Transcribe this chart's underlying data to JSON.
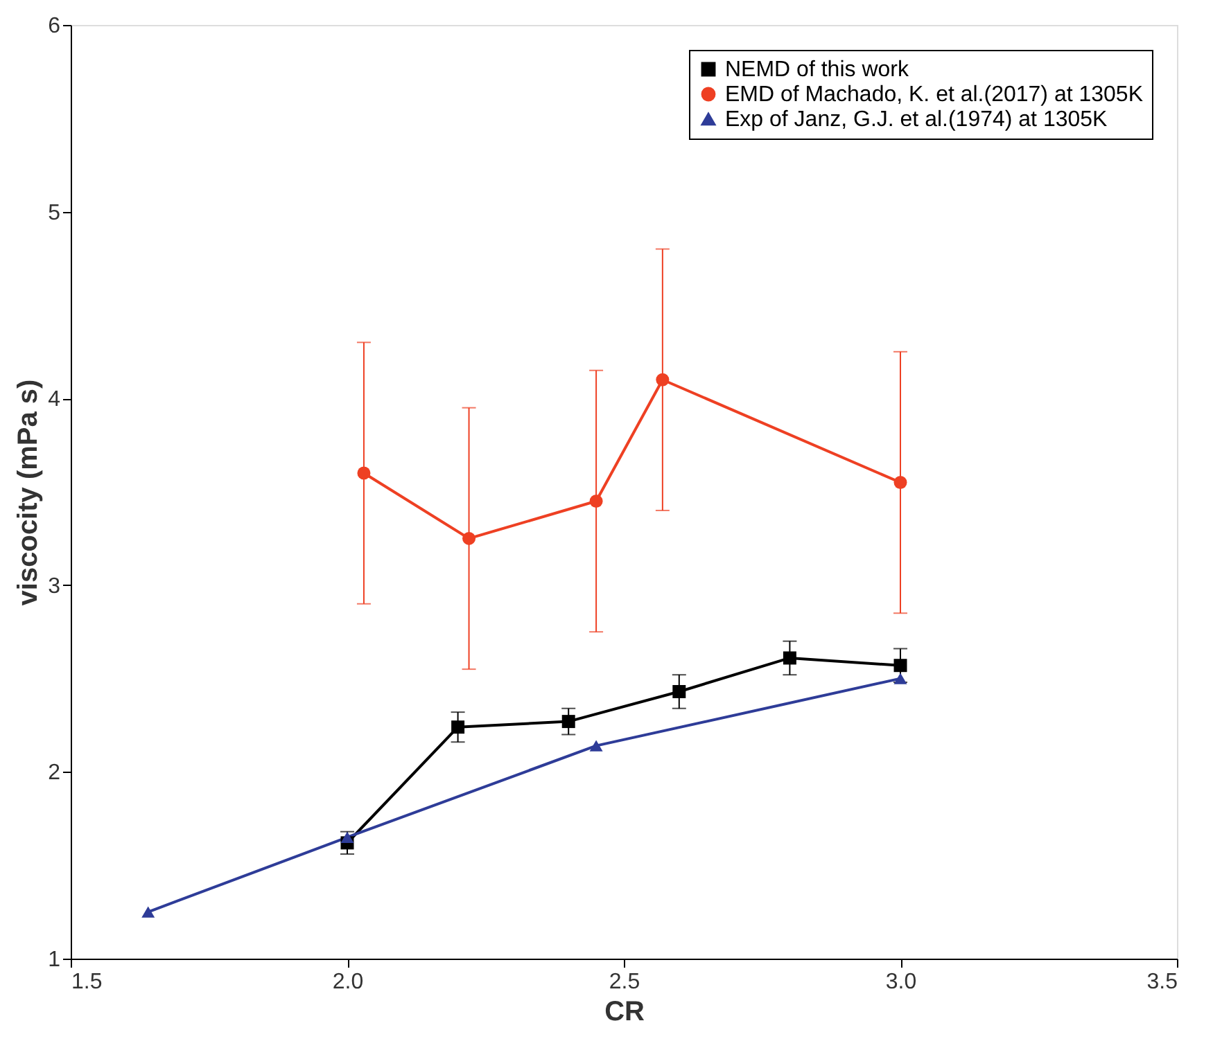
{
  "chart_data": {
    "type": "line",
    "xlabel": "CR",
    "ylabel": "viscocity (mPa s)",
    "xlim": [
      1.5,
      3.5
    ],
    "xticks": [
      1.5,
      {
        "value": 2,
        "label": "2.0"
      },
      2.5,
      {
        "value": 3,
        "label": "3.0"
      },
      3.5
    ],
    "ylim": [
      1,
      6
    ],
    "yticks": [
      1,
      2,
      3,
      4,
      5,
      6
    ],
    "grid": false,
    "legend": "top right",
    "line_style": "solid",
    "series": [
      {
        "name": "NEMD of this work",
        "color": "#000000",
        "marker": "square",
        "x": [
          2.0,
          2.2,
          2.4,
          2.6,
          2.8,
          3.0
        ],
        "values": [
          1.62,
          2.24,
          2.27,
          2.43,
          2.61,
          2.57
        ],
        "errors": [
          0.06,
          0.08,
          0.07,
          0.09,
          0.09,
          0.09
        ]
      },
      {
        "name": "EMD of Machado, K. et al.(2017) at 1305K",
        "color": "#ee4023",
        "marker": "circle",
        "x": [
          2.03,
          2.22,
          2.45,
          2.57,
          3.0
        ],
        "values": [
          3.6,
          3.25,
          3.45,
          4.1,
          3.55
        ],
        "errors": [
          0.7,
          0.7,
          0.7,
          0.7,
          0.7
        ]
      },
      {
        "name": "Exp of Janz, G.J. et al.(1974) at 1305K",
        "color": "#2e3c98",
        "marker": "triangle",
        "x": [
          1.64,
          2.0,
          2.45,
          3.0
        ],
        "values": [
          1.25,
          1.65,
          2.14,
          2.5
        ]
      }
    ]
  }
}
